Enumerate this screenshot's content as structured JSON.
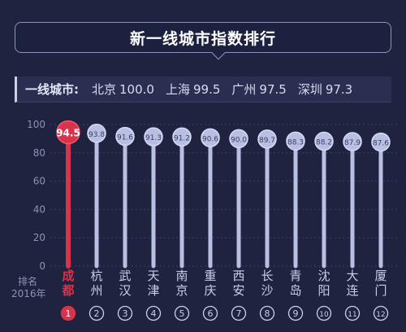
{
  "header": {
    "title": "新一线城市指数排行"
  },
  "tier1": {
    "label": "一线城市:",
    "cities": [
      {
        "name": "北京",
        "value": "100.0"
      },
      {
        "name": "上海",
        "value": "99.5"
      },
      {
        "name": "广州",
        "value": "97.5"
      },
      {
        "name": "深圳",
        "value": "97.3"
      }
    ]
  },
  "rank_label": [
    "排名",
    "2016年"
  ],
  "colors": {
    "highlight": "#d8334a",
    "bar": "#b8bfe3",
    "background": "#1f2340",
    "axis_text": "#8c93b4"
  },
  "chart_data": {
    "type": "bar",
    "categories": [
      "成都",
      "杭州",
      "武汉",
      "天津",
      "南京",
      "重庆",
      "西安",
      "长沙",
      "青岛",
      "沈阳",
      "大连",
      "厦门"
    ],
    "values": [
      94.5,
      93.8,
      91.6,
      91.3,
      91.2,
      90.6,
      90.0,
      89.7,
      88.3,
      88.2,
      87.9,
      87.6
    ],
    "data_labels": [
      "94.5",
      "93.8",
      "91.6",
      "91.3",
      "91.2",
      "90.6",
      "90.0",
      "89.7",
      "88.3",
      "88.2",
      "87.9",
      "87.6"
    ],
    "ranks": [
      "1",
      "2",
      "3",
      "4",
      "5",
      "6",
      "7",
      "8",
      "9",
      "10",
      "11",
      "12"
    ],
    "highlighted_index": 0,
    "yticks": [
      "0",
      "20",
      "40",
      "60",
      "80",
      "100"
    ],
    "ylim": [
      0,
      100
    ],
    "grid": true
  }
}
